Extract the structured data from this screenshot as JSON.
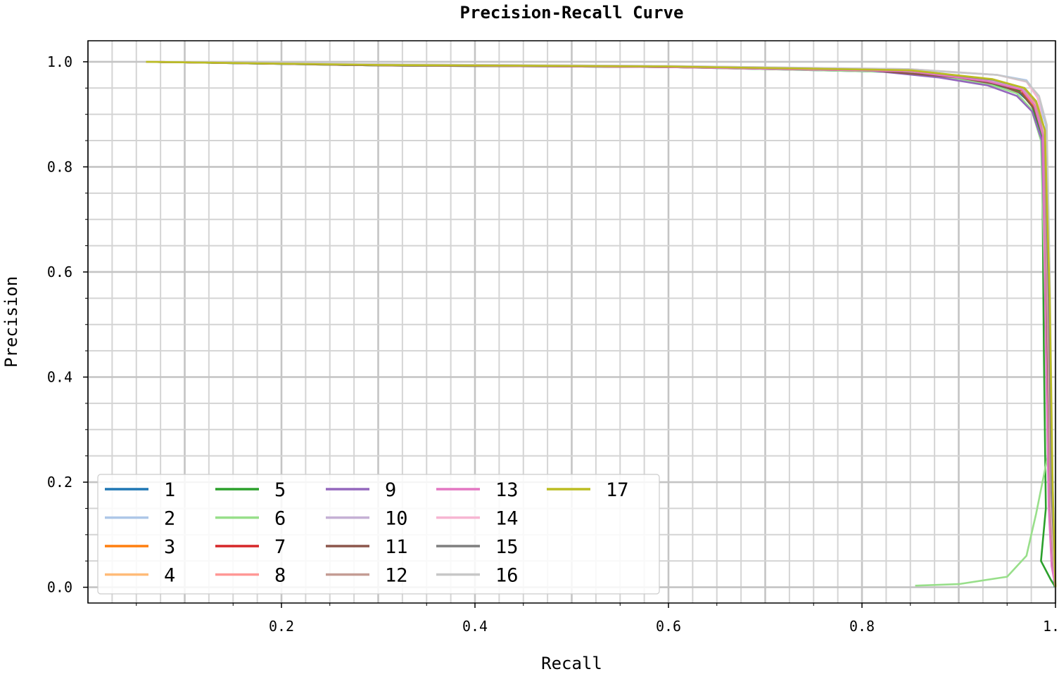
{
  "chart_data": {
    "type": "line",
    "title": "Precision-Recall Curve",
    "xlabel": "Recall",
    "ylabel": "Precision",
    "xlim": [
      0.0,
      1.0
    ],
    "ylim": [
      -0.03,
      1.04
    ],
    "xticks": [
      0.2,
      0.4,
      0.6,
      0.8,
      1.0
    ],
    "xtick_labels": [
      "0.2",
      "0.4",
      "0.6",
      "0.8",
      "1.0"
    ],
    "yticks": [
      0.0,
      0.2,
      0.4,
      0.6,
      0.8,
      1.0
    ],
    "ytick_labels": [
      "0.0",
      "0.2",
      "0.4",
      "0.6",
      "0.8",
      "1.0"
    ],
    "grid": true,
    "legend_position": "lower-left",
    "legend_columns": 5,
    "series": [
      {
        "name": "1",
        "color": "#1f77b4",
        "points": [
          [
            0.06,
            1.0
          ],
          [
            0.3,
            0.993
          ],
          [
            0.6,
            0.99
          ],
          [
            0.85,
            0.98
          ],
          [
            0.93,
            0.96
          ],
          [
            0.96,
            0.945
          ],
          [
            0.975,
            0.92
          ],
          [
            0.985,
            0.87
          ],
          [
            0.99,
            0.8
          ],
          [
            0.992,
            0.5
          ],
          [
            0.995,
            0.2
          ],
          [
            0.997,
            0.06
          ],
          [
            0.999,
            0.0
          ]
        ]
      },
      {
        "name": "2",
        "color": "#aec7e8",
        "points": [
          [
            0.06,
            1.0
          ],
          [
            0.3,
            0.995
          ],
          [
            0.6,
            0.992
          ],
          [
            0.85,
            0.985
          ],
          [
            0.94,
            0.975
          ],
          [
            0.97,
            0.965
          ],
          [
            0.98,
            0.94
          ],
          [
            0.99,
            0.88
          ],
          [
            0.993,
            0.7
          ],
          [
            0.995,
            0.3
          ],
          [
            0.998,
            0.08
          ],
          [
            1.0,
            0.0
          ]
        ]
      },
      {
        "name": "3",
        "color": "#ff7f0e",
        "points": [
          [
            0.06,
            1.0
          ],
          [
            0.3,
            0.994
          ],
          [
            0.6,
            0.99
          ],
          [
            0.85,
            0.982
          ],
          [
            0.93,
            0.962
          ],
          [
            0.965,
            0.945
          ],
          [
            0.978,
            0.915
          ],
          [
            0.987,
            0.86
          ],
          [
            0.991,
            0.6
          ],
          [
            0.994,
            0.15
          ],
          [
            0.997,
            0.04
          ],
          [
            1.0,
            0.0
          ]
        ]
      },
      {
        "name": "4",
        "color": "#ffbb78",
        "points": [
          [
            0.06,
            1.0
          ],
          [
            0.3,
            0.994
          ],
          [
            0.6,
            0.991
          ],
          [
            0.85,
            0.983
          ],
          [
            0.93,
            0.965
          ],
          [
            0.965,
            0.948
          ],
          [
            0.98,
            0.92
          ],
          [
            0.988,
            0.85
          ],
          [
            0.992,
            0.5
          ],
          [
            0.996,
            0.12
          ],
          [
            0.999,
            0.02
          ],
          [
            1.0,
            0.0
          ]
        ]
      },
      {
        "name": "5",
        "color": "#2ca02c",
        "points": [
          [
            0.06,
            1.0
          ],
          [
            0.3,
            0.993
          ],
          [
            0.6,
            0.99
          ],
          [
            0.85,
            0.981
          ],
          [
            0.93,
            0.96
          ],
          [
            0.962,
            0.945
          ],
          [
            0.976,
            0.915
          ],
          [
            0.986,
            0.86
          ],
          [
            0.988,
            0.45
          ],
          [
            0.99,
            0.15
          ],
          [
            0.985,
            0.05
          ],
          [
            0.995,
            0.015
          ],
          [
            1.0,
            0.0
          ]
        ]
      },
      {
        "name": "6",
        "color": "#98df8a",
        "points": [
          [
            0.06,
            1.0
          ],
          [
            0.3,
            0.993
          ],
          [
            0.6,
            0.99
          ],
          [
            0.85,
            0.98
          ],
          [
            0.93,
            0.958
          ],
          [
            0.96,
            0.94
          ],
          [
            0.975,
            0.91
          ],
          [
            0.985,
            0.85
          ],
          [
            0.99,
            0.5
          ],
          [
            0.992,
            0.25
          ],
          [
            0.98,
            0.14
          ],
          [
            0.975,
            0.1
          ],
          [
            0.97,
            0.06
          ],
          [
            0.95,
            0.02
          ],
          [
            0.9,
            0.006
          ],
          [
            0.855,
            0.003
          ]
        ]
      },
      {
        "name": "7",
        "color": "#d62728",
        "points": [
          [
            0.06,
            1.0
          ],
          [
            0.3,
            0.994
          ],
          [
            0.6,
            0.99
          ],
          [
            0.85,
            0.982
          ],
          [
            0.93,
            0.963
          ],
          [
            0.965,
            0.946
          ],
          [
            0.978,
            0.918
          ],
          [
            0.987,
            0.86
          ],
          [
            0.99,
            0.55
          ],
          [
            0.993,
            0.2
          ],
          [
            0.996,
            0.05
          ],
          [
            1.0,
            0.0
          ]
        ]
      },
      {
        "name": "8",
        "color": "#ff9896",
        "points": [
          [
            0.06,
            1.0
          ],
          [
            0.3,
            0.994
          ],
          [
            0.6,
            0.991
          ],
          [
            0.85,
            0.983
          ],
          [
            0.935,
            0.965
          ],
          [
            0.967,
            0.948
          ],
          [
            0.98,
            0.92
          ],
          [
            0.988,
            0.86
          ],
          [
            0.992,
            0.55
          ],
          [
            0.995,
            0.15
          ],
          [
            0.998,
            0.04
          ],
          [
            1.0,
            0.0
          ]
        ]
      },
      {
        "name": "9",
        "color": "#9467bd",
        "points": [
          [
            0.06,
            1.0
          ],
          [
            0.3,
            0.994
          ],
          [
            0.6,
            0.99
          ],
          [
            0.8,
            0.985
          ],
          [
            0.88,
            0.97
          ],
          [
            0.93,
            0.955
          ],
          [
            0.96,
            0.935
          ],
          [
            0.976,
            0.905
          ],
          [
            0.986,
            0.85
          ],
          [
            0.99,
            0.55
          ],
          [
            0.994,
            0.2
          ],
          [
            0.997,
            0.05
          ],
          [
            1.0,
            0.0
          ]
        ]
      },
      {
        "name": "10",
        "color": "#c5b0d5",
        "points": [
          [
            0.06,
            1.0
          ],
          [
            0.3,
            0.994
          ],
          [
            0.6,
            0.991
          ],
          [
            0.85,
            0.983
          ],
          [
            0.93,
            0.965
          ],
          [
            0.965,
            0.95
          ],
          [
            0.98,
            0.925
          ],
          [
            0.988,
            0.87
          ],
          [
            0.992,
            0.6
          ],
          [
            0.995,
            0.2
          ],
          [
            0.998,
            0.05
          ],
          [
            1.0,
            0.0
          ]
        ]
      },
      {
        "name": "11",
        "color": "#8c564b",
        "points": [
          [
            0.06,
            1.0
          ],
          [
            0.3,
            0.993
          ],
          [
            0.6,
            0.99
          ],
          [
            0.8,
            0.985
          ],
          [
            0.9,
            0.97
          ],
          [
            0.94,
            0.957
          ],
          [
            0.965,
            0.94
          ],
          [
            0.978,
            0.91
          ],
          [
            0.987,
            0.86
          ],
          [
            0.99,
            0.55
          ],
          [
            0.993,
            0.2
          ],
          [
            0.996,
            0.05
          ],
          [
            1.0,
            0.0
          ]
        ]
      },
      {
        "name": "12",
        "color": "#c49c94",
        "points": [
          [
            0.06,
            1.0
          ],
          [
            0.3,
            0.994
          ],
          [
            0.6,
            0.991
          ],
          [
            0.85,
            0.984
          ],
          [
            0.935,
            0.966
          ],
          [
            0.967,
            0.95
          ],
          [
            0.98,
            0.922
          ],
          [
            0.988,
            0.86
          ],
          [
            0.992,
            0.5
          ],
          [
            0.995,
            0.15
          ],
          [
            0.998,
            0.04
          ],
          [
            1.0,
            0.0
          ]
        ]
      },
      {
        "name": "13",
        "color": "#e377c2",
        "points": [
          [
            0.06,
            1.0
          ],
          [
            0.3,
            0.994
          ],
          [
            0.6,
            0.99
          ],
          [
            0.85,
            0.982
          ],
          [
            0.93,
            0.963
          ],
          [
            0.965,
            0.947
          ],
          [
            0.978,
            0.918
          ],
          [
            0.987,
            0.86
          ],
          [
            0.99,
            0.45
          ],
          [
            0.993,
            0.15
          ],
          [
            0.996,
            0.04
          ],
          [
            1.0,
            0.0
          ]
        ]
      },
      {
        "name": "14",
        "color": "#f7b6d2",
        "points": [
          [
            0.06,
            1.0
          ],
          [
            0.3,
            0.995
          ],
          [
            0.6,
            0.992
          ],
          [
            0.85,
            0.986
          ],
          [
            0.94,
            0.975
          ],
          [
            0.97,
            0.962
          ],
          [
            0.982,
            0.93
          ],
          [
            0.99,
            0.85
          ],
          [
            0.993,
            0.5
          ],
          [
            0.996,
            0.15
          ],
          [
            0.999,
            0.03
          ],
          [
            1.0,
            0.0
          ]
        ]
      },
      {
        "name": "15",
        "color": "#7f7f7f",
        "points": [
          [
            0.06,
            1.0
          ],
          [
            0.3,
            0.994
          ],
          [
            0.6,
            0.991
          ],
          [
            0.85,
            0.984
          ],
          [
            0.935,
            0.966
          ],
          [
            0.968,
            0.95
          ],
          [
            0.98,
            0.925
          ],
          [
            0.989,
            0.87
          ],
          [
            0.993,
            0.55
          ],
          [
            0.996,
            0.18
          ],
          [
            0.999,
            0.05
          ],
          [
            1.0,
            0.0
          ]
        ]
      },
      {
        "name": "16",
        "color": "#c7c7c7",
        "points": [
          [
            0.06,
            1.0
          ],
          [
            0.3,
            0.995
          ],
          [
            0.6,
            0.992
          ],
          [
            0.85,
            0.986
          ],
          [
            0.94,
            0.975
          ],
          [
            0.97,
            0.963
          ],
          [
            0.983,
            0.935
          ],
          [
            0.991,
            0.88
          ],
          [
            0.994,
            0.6
          ],
          [
            0.997,
            0.2
          ],
          [
            0.999,
            0.06
          ],
          [
            1.0,
            0.0
          ]
        ]
      },
      {
        "name": "17",
        "color": "#bcbd22",
        "points": [
          [
            0.06,
            1.0
          ],
          [
            0.3,
            0.994
          ],
          [
            0.6,
            0.991
          ],
          [
            0.85,
            0.984
          ],
          [
            0.935,
            0.967
          ],
          [
            0.968,
            0.95
          ],
          [
            0.98,
            0.925
          ],
          [
            0.989,
            0.87
          ],
          [
            0.994,
            0.55
          ],
          [
            0.997,
            0.2
          ],
          [
            0.999,
            0.06
          ],
          [
            1.0,
            0.0
          ]
        ]
      }
    ]
  }
}
